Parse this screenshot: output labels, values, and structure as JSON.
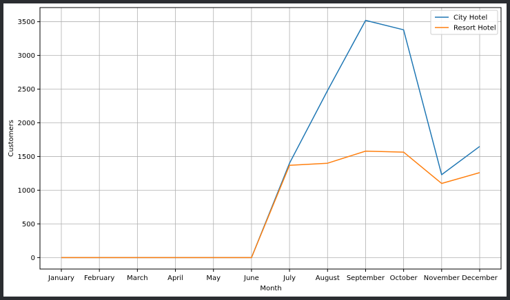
{
  "chart_data": {
    "type": "line",
    "title": "",
    "xlabel": "Month",
    "ylabel": "Customers",
    "categories": [
      "January",
      "February",
      "March",
      "April",
      "May",
      "June",
      "July",
      "August",
      "September",
      "October",
      "November",
      "December"
    ],
    "yticks": [
      0,
      500,
      1000,
      1500,
      2000,
      2500,
      3000,
      3500
    ],
    "ylim": [
      -170,
      3710
    ],
    "grid": true,
    "legend_position": "top-right",
    "series": [
      {
        "name": "City Hotel",
        "color": "#1f77b4",
        "values": [
          0,
          0,
          0,
          0,
          0,
          0,
          1400,
          2480,
          3520,
          3380,
          1230,
          1650
        ]
      },
      {
        "name": "Resort Hotel",
        "color": "#ff7f0e",
        "values": [
          0,
          0,
          0,
          0,
          0,
          0,
          1370,
          1400,
          1580,
          1565,
          1100,
          1260
        ]
      }
    ]
  }
}
